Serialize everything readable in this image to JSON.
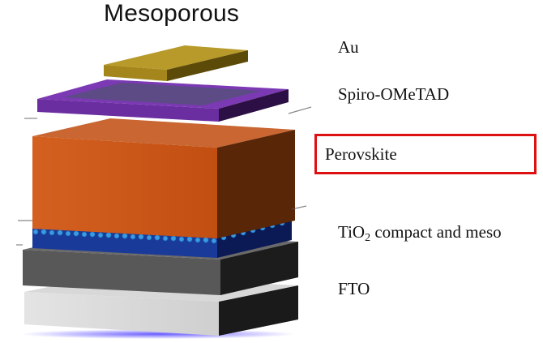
{
  "title": "Mesoporous",
  "layers": [
    {
      "id": "au",
      "label": "Au",
      "color": "#b89a2a"
    },
    {
      "id": "spiro",
      "label": "Spiro-OMeTAD",
      "color": "#7a3ab0"
    },
    {
      "id": "perovskite",
      "label": "Perovskite",
      "color": "#c9561a",
      "highlighted": true
    },
    {
      "id": "tio2",
      "label_main": "TiO",
      "label_sub": "2",
      "label_rest": " compact and meso",
      "color": "#1a3a9a"
    },
    {
      "id": "fto",
      "label": "FTO",
      "color": "#555555"
    }
  ],
  "highlight_color": "#dd1111"
}
